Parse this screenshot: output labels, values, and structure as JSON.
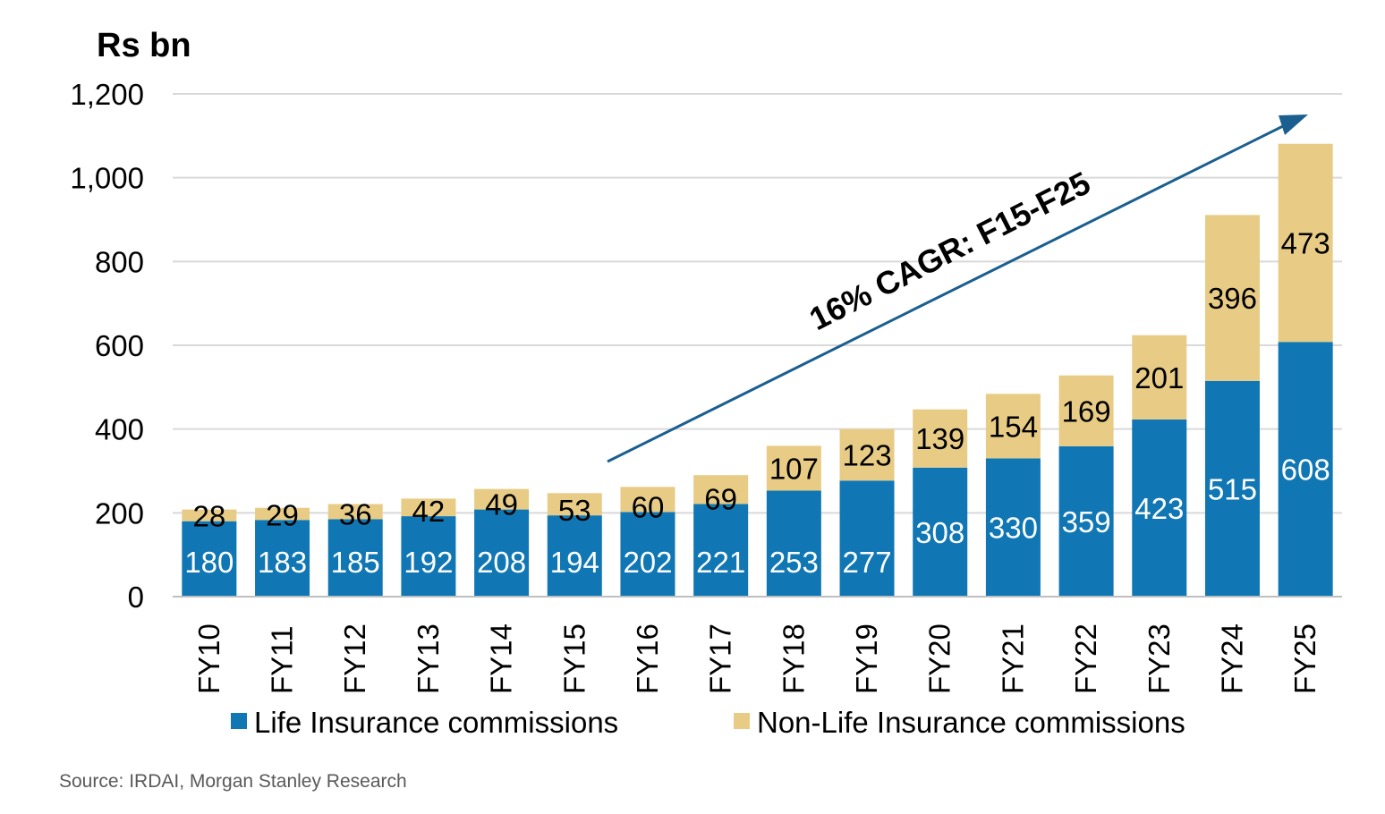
{
  "chart_data": {
    "type": "bar",
    "stacked": true,
    "unit_label": "Rs bn",
    "categories": [
      "FY10",
      "FY11",
      "FY12",
      "FY13",
      "FY14",
      "FY15",
      "FY16",
      "FY17",
      "FY18",
      "FY19",
      "FY20",
      "FY21",
      "FY22",
      "FY23",
      "FY24",
      "FY25"
    ],
    "series": [
      {
        "name": "Life Insurance commissions",
        "color": "#1077b4",
        "values": [
          180,
          183,
          185,
          192,
          208,
          194,
          202,
          221,
          253,
          277,
          308,
          330,
          359,
          423,
          515,
          608
        ]
      },
      {
        "name": "Non-Life Insurance commissions",
        "color": "#e8cc85",
        "values": [
          28,
          29,
          36,
          42,
          49,
          53,
          60,
          69,
          107,
          123,
          139,
          154,
          169,
          201,
          396,
          473
        ]
      }
    ],
    "ylim": [
      0,
      1200
    ],
    "yticks": [
      0,
      200,
      400,
      600,
      800,
      1000,
      1200
    ],
    "ytick_labels": [
      "0",
      "200",
      "400",
      "600",
      "800",
      "1,000",
      "1,200"
    ],
    "grid": true,
    "legend_position": "bottom",
    "annotation": {
      "text": "16% CAGR: F15-F25",
      "arrow_color": "#1a5f8f"
    },
    "source": "Source: IRDAI, Morgan Stanley Research"
  }
}
